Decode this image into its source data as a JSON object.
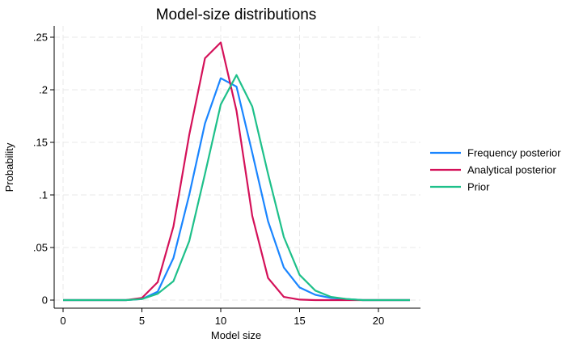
{
  "chart_data": {
    "type": "line",
    "title": "Model-size distributions",
    "xlabel": "Model size",
    "ylabel": "Probability",
    "xlim": [
      0,
      22
    ],
    "ylim": [
      0,
      0.25
    ],
    "xticks": [
      0,
      5,
      10,
      15,
      20
    ],
    "xtick_labels": [
      "0",
      "5",
      "10",
      "15",
      "20"
    ],
    "yticks": [
      0,
      0.05,
      0.1,
      0.15,
      0.2,
      0.25
    ],
    "ytick_labels": [
      "0",
      ".05",
      ".1",
      ".15",
      ".2",
      ".25"
    ],
    "grid": true,
    "legend_position": "right",
    "x": [
      0,
      1,
      2,
      3,
      4,
      5,
      6,
      7,
      8,
      9,
      10,
      11,
      12,
      13,
      14,
      15,
      16,
      17,
      18,
      19,
      20,
      21,
      22
    ],
    "series": [
      {
        "name": "Frequency posterior",
        "color": "#1a85ff",
        "values": [
          0,
          0,
          0,
          0,
          0,
          0.001,
          0.008,
          0.04,
          0.1,
          0.168,
          0.211,
          0.203,
          0.14,
          0.075,
          0.031,
          0.012,
          0.005,
          0.002,
          0.001,
          0,
          0,
          0,
          0
        ]
      },
      {
        "name": "Analytical posterior",
        "color": "#d41159",
        "values": [
          0,
          0,
          0,
          0,
          0,
          0.002,
          0.017,
          0.07,
          0.157,
          0.23,
          0.245,
          0.18,
          0.08,
          0.021,
          0.003,
          0.0005,
          0,
          0,
          0,
          0,
          0,
          0,
          0
        ]
      },
      {
        "name": "Prior",
        "color": "#1ec08a",
        "values": [
          0,
          0,
          0,
          0,
          0,
          0.001,
          0.006,
          0.018,
          0.056,
          0.12,
          0.186,
          0.214,
          0.184,
          0.12,
          0.06,
          0.024,
          0.009,
          0.003,
          0.001,
          0,
          0,
          0,
          0
        ]
      }
    ]
  }
}
